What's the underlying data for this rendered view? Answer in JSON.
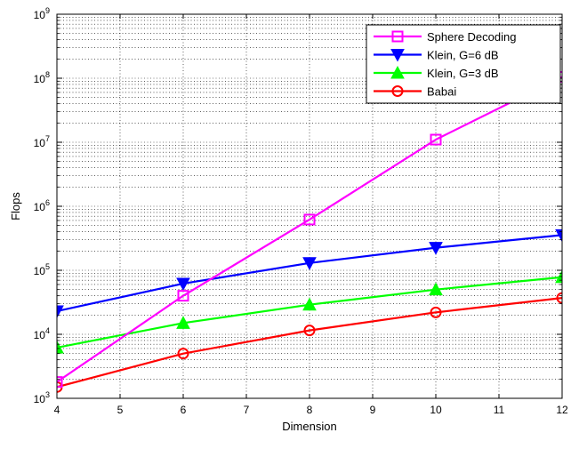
{
  "chart_data": {
    "type": "line",
    "title": "",
    "xlabel": "Dimension",
    "ylabel": "Flops",
    "xlim": [
      4,
      12
    ],
    "ylim": [
      1000,
      1000000000
    ],
    "y_scale": "log",
    "grid": true,
    "legend_position": "top-right",
    "x_ticks": [
      "4",
      "5",
      "6",
      "7",
      "8",
      "9",
      "10",
      "11",
      "12"
    ],
    "y_ticks": [
      {
        "base": "10",
        "exp": "3"
      },
      {
        "base": "10",
        "exp": "4"
      },
      {
        "base": "10",
        "exp": "5"
      },
      {
        "base": "10",
        "exp": "6"
      },
      {
        "base": "10",
        "exp": "7"
      },
      {
        "base": "10",
        "exp": "8"
      },
      {
        "base": "10",
        "exp": "9"
      }
    ],
    "x": [
      4,
      6,
      8,
      10,
      12
    ],
    "series": [
      {
        "name": "Sphere Decoding",
        "color": "#ff00ff",
        "marker": "square",
        "values": [
          1800,
          40000,
          620000,
          11000000,
          105000000
        ]
      },
      {
        "name": "Klein, G=6 dB",
        "color": "#0000ff",
        "marker": "triangle-down",
        "values": [
          23000,
          62000,
          130000,
          225000,
          355000
        ]
      },
      {
        "name": "Klein, G=3 dB",
        "color": "#00ff00",
        "marker": "triangle-up",
        "values": [
          6200,
          15000,
          29000,
          50000,
          78000
        ]
      },
      {
        "name": "Babai",
        "color": "#ff0000",
        "marker": "circle",
        "values": [
          1500,
          5000,
          11500,
          22000,
          37000
        ]
      }
    ]
  }
}
